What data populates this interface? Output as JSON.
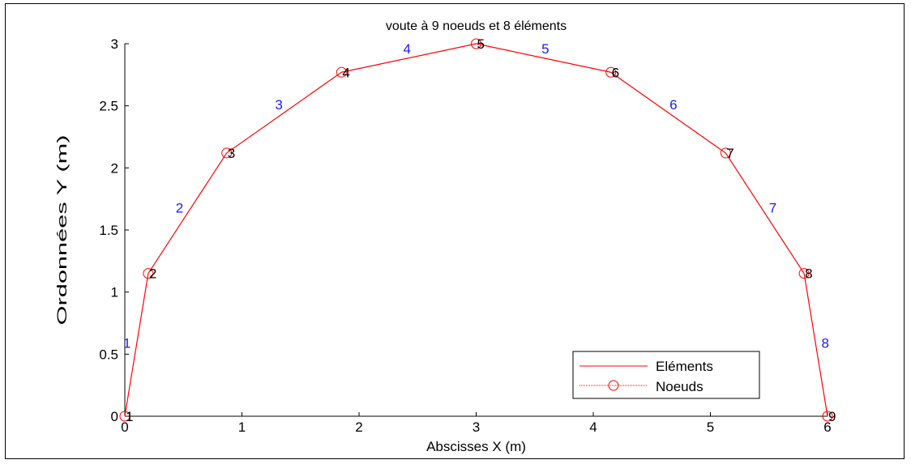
{
  "chart_data": {
    "type": "line",
    "title": "voute à 9 noeuds et 8 éléments",
    "xlabel": "Abscisses X (m)",
    "ylabel": "Ordonnées Y (m)",
    "xlim": [
      0,
      6
    ],
    "ylim": [
      0,
      3
    ],
    "xticks": [
      0,
      1,
      2,
      3,
      4,
      5,
      6
    ],
    "xtick_labels": [
      "0",
      "1",
      "2",
      "3",
      "4",
      "5",
      "6"
    ],
    "yticks": [
      0,
      0.5,
      1,
      1.5,
      2,
      2.5,
      3
    ],
    "ytick_labels": [
      "0",
      "0.5",
      "1",
      "1.5",
      "2",
      "2.5",
      "3"
    ],
    "grid": false,
    "legend_position": "bottom-right",
    "colors": {
      "line": "#ff0000",
      "markers": "#ff0000",
      "element_labels": "#1a1aff",
      "node_labels": "#000000"
    },
    "series": [
      {
        "name": "Eléments",
        "style": "line"
      },
      {
        "name": "Noeuds",
        "style": "circle-markers"
      }
    ],
    "nodes": {
      "x": [
        0,
        0.2,
        0.87,
        1.85,
        3,
        4.15,
        5.13,
        5.8,
        6
      ],
      "y": [
        0,
        1.15,
        2.12,
        2.77,
        3,
        2.77,
        2.12,
        1.15,
        0
      ],
      "labels": [
        "1",
        "2",
        "3",
        "4",
        "5",
        "6",
        "7",
        "8",
        "9"
      ]
    },
    "elements": {
      "labels": [
        "1",
        "2",
        "3",
        "4",
        "5",
        "6",
        "7",
        "8"
      ]
    }
  }
}
